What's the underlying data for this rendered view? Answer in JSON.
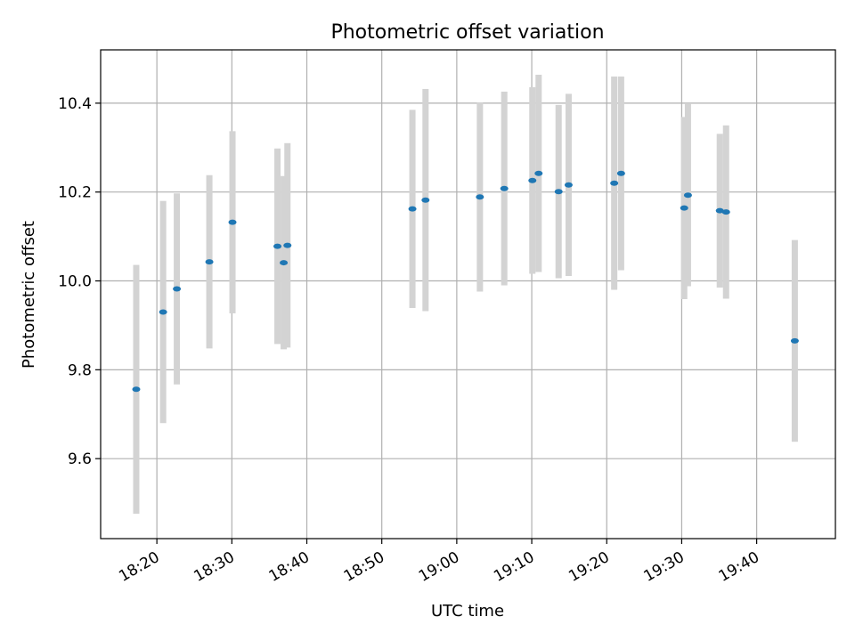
{
  "chart_data": {
    "type": "scatter",
    "title": "Photometric offset variation",
    "xlabel": "UTC time",
    "ylabel": "Photometric offset",
    "xlim": [
      "18:12:30",
      "19:50:30"
    ],
    "ylim": [
      9.42,
      10.52
    ],
    "grid": true,
    "x_ticks": [
      "18:20",
      "18:30",
      "18:40",
      "18:50",
      "19:00",
      "19:10",
      "19:20",
      "19:30",
      "19:40"
    ],
    "y_ticks": [
      "9.6",
      "9.8",
      "10.0",
      "10.2",
      "10.4"
    ],
    "errorbar_color": "#d3d3d3",
    "point_color": "#1f77b4",
    "points": [
      {
        "x": "18:17:15",
        "y": 9.756,
        "yerr": 0.28
      },
      {
        "x": "18:20:50",
        "y": 9.93,
        "yerr": 0.25
      },
      {
        "x": "18:22:40",
        "y": 9.982,
        "yerr": 0.215
      },
      {
        "x": "18:27:00",
        "y": 10.043,
        "yerr": 0.195
      },
      {
        "x": "18:30:05",
        "y": 10.132,
        "yerr": 0.205
      },
      {
        "x": "18:36:05",
        "y": 10.078,
        "yerr": 0.22
      },
      {
        "x": "18:36:55",
        "y": 10.041,
        "yerr": 0.195
      },
      {
        "x": "18:37:25",
        "y": 10.08,
        "yerr": 0.23
      },
      {
        "x": "18:54:05",
        "y": 10.162,
        "yerr": 0.223
      },
      {
        "x": "18:55:50",
        "y": 10.182,
        "yerr": 0.25
      },
      {
        "x": "19:03:05",
        "y": 10.189,
        "yerr": 0.213
      },
      {
        "x": "19:06:20",
        "y": 10.208,
        "yerr": 0.218
      },
      {
        "x": "19:10:05",
        "y": 10.226,
        "yerr": 0.21
      },
      {
        "x": "19:10:55",
        "y": 10.242,
        "yerr": 0.222
      },
      {
        "x": "19:13:35",
        "y": 10.201,
        "yerr": 0.195
      },
      {
        "x": "19:14:55",
        "y": 10.216,
        "yerr": 0.205
      },
      {
        "x": "19:21:00",
        "y": 10.22,
        "yerr": 0.24
      },
      {
        "x": "19:21:55",
        "y": 10.242,
        "yerr": 0.218
      },
      {
        "x": "19:30:20",
        "y": 10.164,
        "yerr": 0.205
      },
      {
        "x": "19:30:50",
        "y": 10.193,
        "yerr": 0.205
      },
      {
        "x": "19:35:05",
        "y": 10.158,
        "yerr": 0.173
      },
      {
        "x": "19:35:55",
        "y": 10.155,
        "yerr": 0.195
      },
      {
        "x": "19:45:05",
        "y": 9.865,
        "yerr": 0.227
      }
    ]
  }
}
